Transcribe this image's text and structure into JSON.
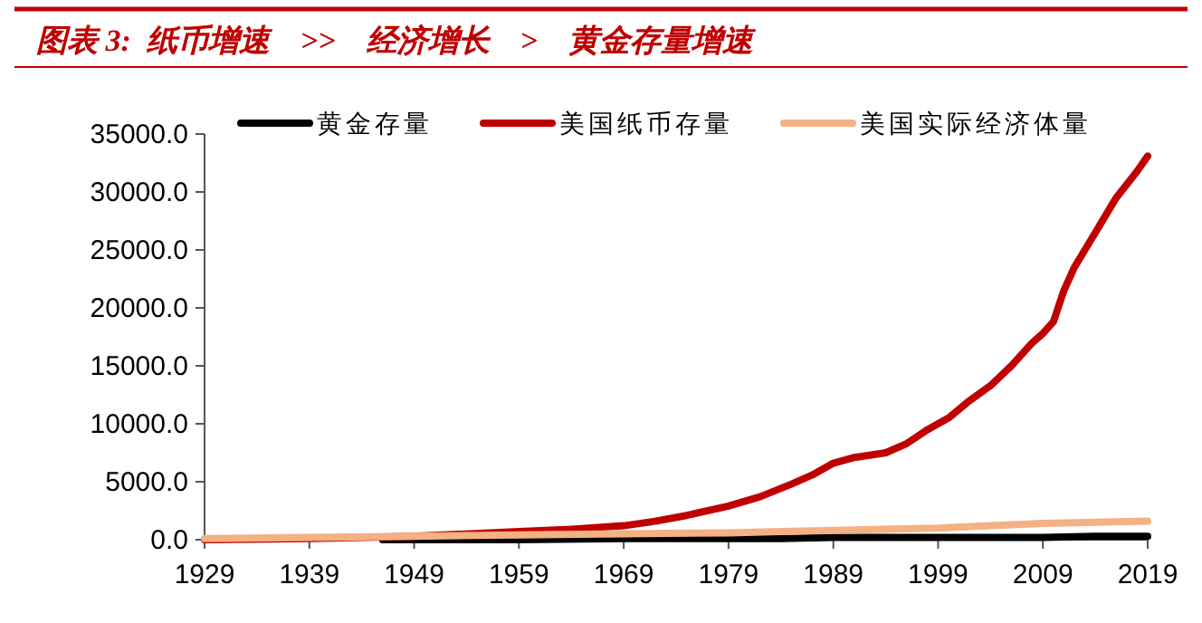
{
  "chart_data": {
    "type": "line",
    "title": "图表 3:  纸币增速    >>    经济增长    >    黄金存量增速",
    "legend": "top",
    "grid": false,
    "line_style": "solid",
    "xlim": [
      1929,
      2019
    ],
    "xticks": [
      1929,
      1939,
      1949,
      1959,
      1969,
      1979,
      1989,
      1999,
      2009,
      2019
    ],
    "ylim": [
      0,
      35000
    ],
    "yticks": [
      {
        "value": 0,
        "label": "0.0"
      },
      {
        "value": 5000,
        "label": "5000.0"
      },
      {
        "value": 10000,
        "label": "10000.0"
      },
      {
        "value": 15000,
        "label": "15000.0"
      },
      {
        "value": 20000,
        "label": "20000.0"
      },
      {
        "value": 25000,
        "label": "25000.0"
      },
      {
        "value": 30000,
        "label": "30000.0"
      },
      {
        "value": 35000,
        "label": "35000.0"
      }
    ],
    "series": [
      {
        "name": "黄金存量",
        "color": "#000000",
        "x": [
          1946,
          1959,
          1969,
          1979,
          1984,
          1989,
          1994,
          1999,
          2004,
          2009,
          2014,
          2019
        ],
        "values": [
          0,
          0,
          100,
          100,
          100,
          200,
          200,
          200,
          200,
          200,
          300,
          300
        ]
      },
      {
        "name": "美国纸币存量",
        "color": "#c00000",
        "x": [
          1929,
          1939,
          1949,
          1959,
          1964,
          1969,
          1972,
          1975,
          1979,
          1982,
          1985,
          1987,
          1989,
          1991,
          1994,
          1996,
          1998,
          2000,
          2002,
          2004,
          2006,
          2008,
          2009,
          2010,
          2011,
          2012,
          2014,
          2016,
          2018,
          2019
        ],
        "values": [
          0,
          100,
          300,
          700,
          900,
          1200,
          1600,
          2100,
          2900,
          3700,
          4800,
          5600,
          6600,
          7100,
          7500,
          8300,
          9500,
          10500,
          12000,
          13300,
          15000,
          17000,
          17800,
          18800,
          21500,
          23500,
          26500,
          29500,
          31800,
          33100
        ]
      },
      {
        "name": "美国实际经济体量",
        "color": "#f4b183",
        "x": [
          1929,
          1939,
          1949,
          1959,
          1969,
          1979,
          1984,
          1989,
          1994,
          1999,
          2004,
          2009,
          2014,
          2019
        ],
        "values": [
          100,
          200,
          300,
          400,
          500,
          600,
          700,
          800,
          900,
          1000,
          1200,
          1400,
          1500,
          1600
        ]
      }
    ]
  }
}
